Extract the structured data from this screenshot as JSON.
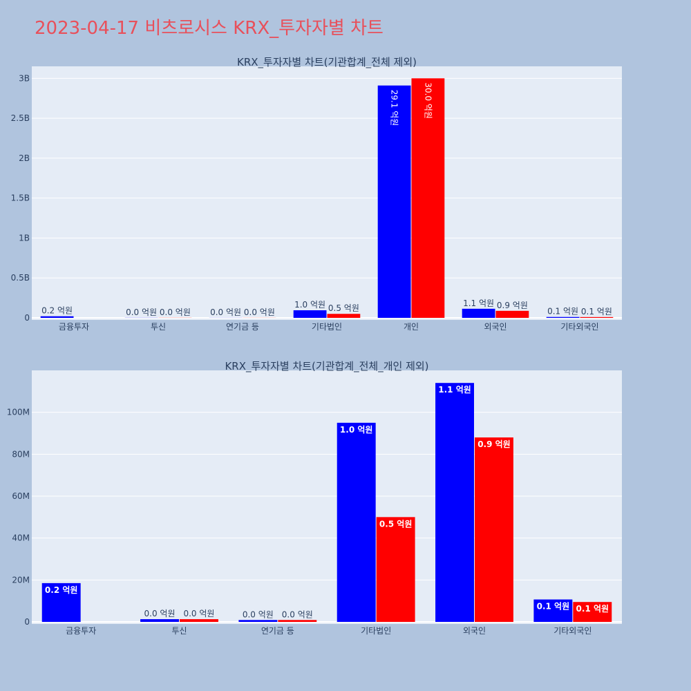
{
  "page": {
    "title": "2023-04-17 비츠로시스 KRX_투자자별 차트",
    "background": "#b0c4de",
    "title_color": "#e8505b",
    "plot_background": "#e5ecf6",
    "grid_color": "#ffffff"
  },
  "chart_data": [
    {
      "type": "bar",
      "title": "KRX_투자자별 차트(기관합계_전체 제외)",
      "categories": [
        "금융투자",
        "투신",
        "연기금 등",
        "기타법인",
        "개인",
        "외국인",
        "기타외국인"
      ],
      "series": [
        {
          "color": "#0000ff",
          "values": [
            20000000,
            1500000,
            1000000,
            95000000,
            2910000000,
            114000000,
            11000000
          ],
          "labels": [
            "0.2 억원",
            "0.0 억원",
            "0.0 억원",
            "1.0 억원",
            "29.1 억원",
            "1.1 억원",
            "0.1 억원"
          ]
        },
        {
          "color": "#ff0000",
          "values": [
            0,
            1500000,
            1000000,
            50000000,
            3000000000,
            88000000,
            10000000
          ],
          "labels": [
            "",
            "0.0 억원",
            "0.0 억원",
            "0.5 억원",
            "30.0 억원",
            "0.9 억원",
            "0.1 억원"
          ]
        }
      ],
      "yticks": [
        0,
        500000000,
        1000000000,
        1500000000,
        2000000000,
        2500000000,
        3000000000
      ],
      "ytick_labels": [
        "0",
        "0.5B",
        "1B",
        "1.5B",
        "2B",
        "2.5B",
        "3B"
      ],
      "ylim": [
        0,
        3150000000
      ],
      "grid": true
    },
    {
      "type": "bar",
      "title": "KRX_투자자별 차트(기관합계_전체_개인 제외)",
      "categories": [
        "금융투자",
        "투신",
        "연기금 등",
        "기타법인",
        "외국인",
        "기타외국인"
      ],
      "series": [
        {
          "color": "#0000ff",
          "values": [
            18500000,
            1300000,
            900000,
            95000000,
            114000000,
            10700000
          ],
          "labels": [
            "0.2 억원",
            "0.0 억원",
            "0.0 억원",
            "1.0 억원",
            "1.1 억원",
            "0.1 억원"
          ]
        },
        {
          "color": "#ff0000",
          "values": [
            0,
            1300000,
            900000,
            50000000,
            88000000,
            9500000
          ],
          "labels": [
            "",
            "0.0 억원",
            "0.0 억원",
            "0.5 억원",
            "0.9 억원",
            "0.1 억원"
          ]
        }
      ],
      "yticks": [
        0,
        20000000,
        40000000,
        60000000,
        80000000,
        100000000
      ],
      "ytick_labels": [
        "0",
        "20M",
        "40M",
        "60M",
        "80M",
        "100M"
      ],
      "ylim": [
        0,
        120000000
      ],
      "grid": true
    }
  ]
}
